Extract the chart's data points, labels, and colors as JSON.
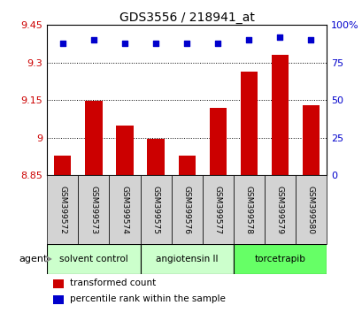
{
  "title": "GDS3556 / 218941_at",
  "samples": [
    "GSM399572",
    "GSM399573",
    "GSM399574",
    "GSM399575",
    "GSM399576",
    "GSM399577",
    "GSM399578",
    "GSM399579",
    "GSM399580"
  ],
  "bar_values": [
    8.93,
    9.148,
    9.05,
    8.995,
    8.928,
    9.12,
    9.265,
    9.33,
    9.13
  ],
  "percentile_values": [
    88,
    90,
    88,
    88,
    88,
    88,
    90,
    92,
    90
  ],
  "ymin": 8.85,
  "ymax": 9.45,
  "yticks": [
    8.85,
    9.0,
    9.15,
    9.3,
    9.45
  ],
  "ytick_labels": [
    "8.85",
    "9",
    "9.15",
    "9.3",
    "9.45"
  ],
  "right_yticks": [
    0,
    25,
    50,
    75,
    100
  ],
  "right_ytick_labels": [
    "0",
    "25",
    "50",
    "75",
    "100%"
  ],
  "bar_color": "#cc0000",
  "dot_color": "#0000cc",
  "bar_bottom": 8.85,
  "dotted_gridlines": [
    9.0,
    9.15,
    9.3
  ],
  "groups": [
    {
      "label": "solvent control",
      "start": 0,
      "end": 3,
      "color": "#ccffcc"
    },
    {
      "label": "angiotensin II",
      "start": 3,
      "end": 6,
      "color": "#ccffcc"
    },
    {
      "label": "torcetrapib",
      "start": 6,
      "end": 9,
      "color": "#66ff66"
    }
  ],
  "legend_items": [
    {
      "color": "#cc0000",
      "label": "transformed count"
    },
    {
      "color": "#0000cc",
      "label": "percentile rank within the sample"
    }
  ],
  "agent_label": "agent",
  "background_color": "#ffffff",
  "plot_bg_color": "#ffffff",
  "tick_label_color_left": "#cc0000",
  "tick_label_color_right": "#0000cc",
  "xlabel_area_color": "#d3d3d3",
  "grid_color": "#000000"
}
